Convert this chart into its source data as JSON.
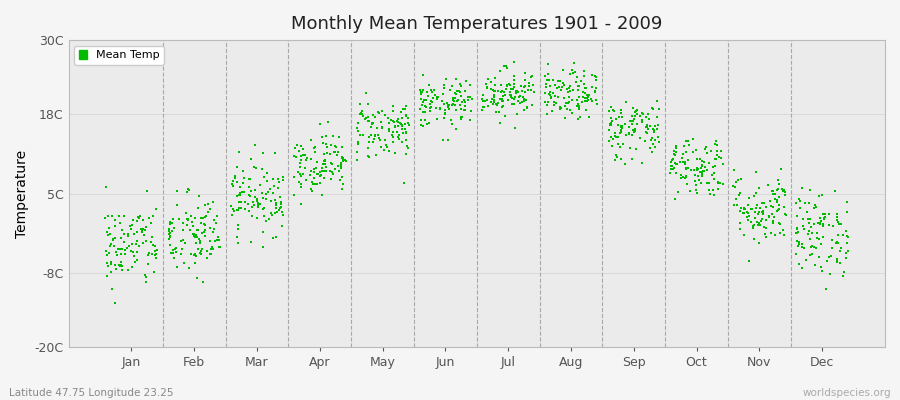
{
  "title": "Monthly Mean Temperatures 1901 - 2009",
  "ylabel": "Temperature",
  "subtitle": "Latitude 47.75 Longitude 23.25",
  "watermark": "worldspecies.org",
  "yticks": [
    -20,
    -8,
    5,
    18,
    30
  ],
  "ytick_labels": [
    "-20C",
    "-8C",
    "5C",
    "18C",
    "30C"
  ],
  "ylim": [
    -20,
    30
  ],
  "months": [
    "Jan",
    "Feb",
    "Mar",
    "Apr",
    "May",
    "Jun",
    "Jul",
    "Aug",
    "Sep",
    "Oct",
    "Nov",
    "Dec"
  ],
  "dot_color": "#00bb00",
  "background_color": "#f5f5f5",
  "plot_bg_color": "#ebebeb",
  "legend_label": "Mean Temp",
  "n_years": 109,
  "monthly_means": [
    -3.5,
    -2.0,
    4.5,
    10.0,
    15.5,
    19.5,
    21.5,
    21.0,
    15.5,
    9.5,
    2.5,
    -1.5
  ],
  "monthly_stds": [
    3.5,
    3.5,
    3.0,
    2.5,
    2.5,
    2.0,
    2.0,
    2.0,
    2.5,
    2.5,
    3.0,
    3.5
  ],
  "seed": 42,
  "dot_size": 3,
  "xlim_left": 0.0,
  "xlim_right": 13.0,
  "dashed_line_positions": [
    1.5,
    2.5,
    3.5,
    4.5,
    5.5,
    6.5,
    7.5,
    8.5,
    9.5,
    10.5,
    11.5
  ],
  "xtick_positions": [
    1,
    2,
    3,
    4,
    5,
    6,
    7,
    8,
    9,
    10,
    11,
    12
  ]
}
